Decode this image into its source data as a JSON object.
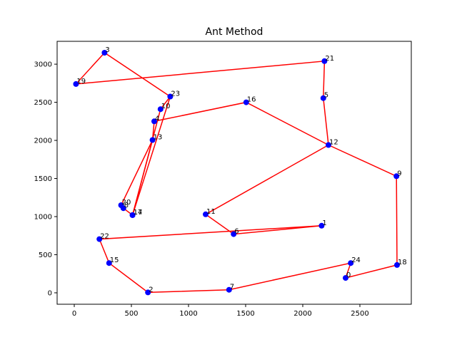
{
  "chart_data": {
    "type": "scatter",
    "title": "Ant Method",
    "xlabel": "",
    "ylabel": "",
    "xlim": [
      -150,
      2950
    ],
    "ylim": [
      -150,
      3300
    ],
    "xticks": [
      0,
      500,
      1000,
      1500,
      2000,
      2500
    ],
    "yticks": [
      0,
      500,
      1000,
      1500,
      2000,
      2500,
      3000
    ],
    "grid": false,
    "legend": "none",
    "colors": {
      "point": "#0000ff",
      "route": "#ff0000"
    },
    "points": [
      {
        "id": "0",
        "x": 2375,
        "y": 195
      },
      {
        "id": "1",
        "x": 2165,
        "y": 880
      },
      {
        "id": "2",
        "x": 645,
        "y": 5
      },
      {
        "id": "3",
        "x": 265,
        "y": 3150
      },
      {
        "id": "4",
        "x": 700,
        "y": 2250
      },
      {
        "id": "5",
        "x": 2180,
        "y": 2555
      },
      {
        "id": "6",
        "x": 1395,
        "y": 770
      },
      {
        "id": "7",
        "x": 1355,
        "y": 40
      },
      {
        "id": "8",
        "x": 430,
        "y": 1110
      },
      {
        "id": "9",
        "x": 2820,
        "y": 1530
      },
      {
        "id": "10",
        "x": 755,
        "y": 2410
      },
      {
        "id": "11",
        "x": 1150,
        "y": 1030
      },
      {
        "id": "12",
        "x": 2225,
        "y": 1940
      },
      {
        "id": "13",
        "x": 685,
        "y": 2005
      },
      {
        "id": "14",
        "x": 510,
        "y": 1020
      },
      {
        "id": "15",
        "x": 305,
        "y": 390
      },
      {
        "id": "16",
        "x": 1505,
        "y": 2500
      },
      {
        "id": "17",
        "x": 510,
        "y": 1020
      },
      {
        "id": "18",
        "x": 2825,
        "y": 365
      },
      {
        "id": "19",
        "x": 15,
        "y": 2740
      },
      {
        "id": "20",
        "x": 410,
        "y": 1150
      },
      {
        "id": "21",
        "x": 2190,
        "y": 3040
      },
      {
        "id": "22",
        "x": 220,
        "y": 705
      },
      {
        "id": "23",
        "x": 840,
        "y": 2575
      },
      {
        "id": "24",
        "x": 2420,
        "y": 390
      }
    ],
    "route": [
      "0",
      "24",
      "7",
      "2",
      "15",
      "22",
      "1",
      "6",
      "11",
      "12",
      "5",
      "21",
      "19",
      "3",
      "23",
      "14",
      "13",
      "4",
      "16",
      "12",
      "9",
      "18",
      "0"
    ],
    "extra_route": [
      "23",
      "10",
      "17",
      "8",
      "20",
      "13"
    ]
  }
}
